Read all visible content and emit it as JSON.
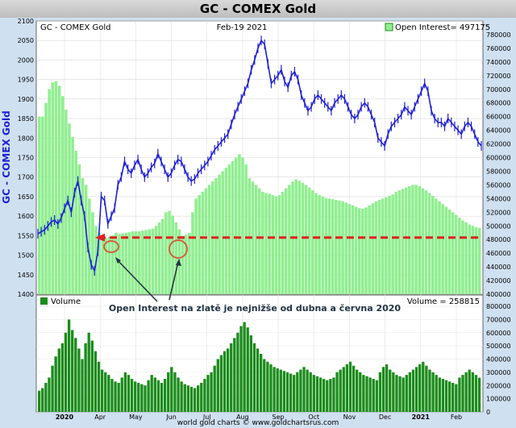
{
  "title": "GC - COMEX Gold",
  "header_left": "GC - COMEX Gold",
  "header_date": "Feb-19  2021",
  "oi_legend": "Open Interest= 497175",
  "volume_legend": "Volume",
  "volume_value": "Volume = 258815",
  "ylabel_left": "GC - COMEX Gold",
  "footer": "world gold charts © www.goldchartsrus.com",
  "annotation": "Open Interest na zlatě je nejnižše od dubna a června 2020",
  "colors": {
    "price": "#1f1fd6",
    "open_interest": "#90ee90",
    "volume": "#1a8c1a",
    "reference_line": "#e02020",
    "panel_bg": "#ffffff",
    "frame_bg": "#cfe0f0"
  },
  "chart_data": [
    {
      "type": "line",
      "name": "price",
      "title": "GC - COMEX Gold",
      "ylabel": "GC - COMEX Gold",
      "ylim": [
        1400,
        2100
      ],
      "yticks": [
        1400,
        1450,
        1500,
        1550,
        1600,
        1650,
        1700,
        1750,
        1800,
        1850,
        1900,
        1950,
        2000,
        2050,
        2100
      ],
      "x_ticks": [
        "2020",
        "Apr",
        "May",
        "Jun",
        "Jul",
        "Aug",
        "Sep",
        "Oct",
        "Nov",
        "Dec",
        "2021",
        "Feb"
      ],
      "series": [
        {
          "name": "",
          "values": [
            1555,
            1560,
            1565,
            1575,
            1585,
            1590,
            1580,
            1595,
            1620,
            1640,
            1610,
            1660,
            1690,
            1640,
            1600,
            1520,
            1475,
            1460,
            1510,
            1650,
            1640,
            1580,
            1600,
            1620,
            1680,
            1700,
            1740,
            1720,
            1710,
            1730,
            1745,
            1720,
            1700,
            1710,
            1725,
            1735,
            1760,
            1740,
            1720,
            1700,
            1710,
            1730,
            1745,
            1740,
            1720,
            1700,
            1690,
            1695,
            1710,
            1720,
            1730,
            1740,
            1755,
            1770,
            1780,
            1790,
            1800,
            1810,
            1835,
            1860,
            1880,
            1900,
            1920,
            1940,
            1975,
            2000,
            2030,
            2050,
            2040,
            1990,
            1940,
            1950,
            1960,
            1975,
            1945,
            1930,
            1960,
            1970,
            1950,
            1910,
            1890,
            1870,
            1880,
            1900,
            1910,
            1900,
            1890,
            1880,
            1870,
            1890,
            1900,
            1910,
            1900,
            1880,
            1860,
            1850,
            1860,
            1880,
            1890,
            1880,
            1860,
            1840,
            1800,
            1790,
            1780,
            1810,
            1830,
            1840,
            1850,
            1860,
            1880,
            1870,
            1860,
            1880,
            1900,
            1920,
            1940,
            1920,
            1870,
            1850,
            1840,
            1840,
            1830,
            1850,
            1840,
            1830,
            1820,
            1810,
            1830,
            1840,
            1830,
            1810,
            1790,
            1780
          ]
        }
      ]
    },
    {
      "type": "bar",
      "name": "open_interest",
      "ylabel": "Open Interest",
      "ylim": [
        400000,
        800000
      ],
      "yticks": [
        400000,
        420000,
        440000,
        460000,
        480000,
        500000,
        520000,
        540000,
        560000,
        580000,
        600000,
        620000,
        640000,
        660000,
        680000,
        700000,
        720000,
        740000,
        760000,
        780000
      ],
      "values": [
        660000,
        660000,
        680000,
        700000,
        710000,
        712000,
        705000,
        690000,
        670000,
        650000,
        630000,
        610000,
        590000,
        570000,
        560000,
        540000,
        520000,
        500000,
        490000,
        485000,
        482000,
        484000,
        486000,
        490000,
        488000,
        489000,
        490000,
        491000,
        492000,
        492000,
        492000,
        493000,
        494000,
        495000,
        496000,
        500000,
        505000,
        510000,
        520000,
        522000,
        515000,
        505000,
        495000,
        485000,
        487000,
        490000,
        520000,
        540000,
        545000,
        550000,
        555000,
        560000,
        565000,
        570000,
        575000,
        580000,
        585000,
        590000,
        595000,
        600000,
        605000,
        600000,
        590000,
        570000,
        565000,
        560000,
        555000,
        550000,
        548000,
        547000,
        545000,
        543000,
        545000,
        550000,
        555000,
        560000,
        565000,
        568000,
        566000,
        563000,
        560000,
        556000,
        552000,
        548000,
        545000,
        543000,
        541000,
        540000,
        539000,
        538000,
        537000,
        536000,
        534000,
        532000,
        530000,
        528000,
        526000,
        525000,
        527000,
        530000,
        533000,
        536000,
        538000,
        540000,
        542000,
        544000,
        546000,
        550000,
        552000,
        554000,
        556000,
        558000,
        560000,
        560000,
        558000,
        555000,
        552000,
        548000,
        544000,
        540000,
        536000,
        532000,
        528000,
        524000,
        520000,
        516000,
        512000,
        508000,
        505000,
        502000,
        500000,
        498000,
        497175
      ]
    },
    {
      "type": "bar",
      "name": "volume",
      "ylabel": "Volume",
      "ylim": [
        0,
        800000
      ],
      "yticks": [
        0,
        100000,
        200000,
        300000,
        400000,
        500000,
        600000,
        700000,
        800000
      ],
      "values": [
        160000,
        180000,
        220000,
        260000,
        350000,
        420000,
        480000,
        520000,
        600000,
        700000,
        620000,
        560000,
        480000,
        400000,
        520000,
        600000,
        540000,
        460000,
        380000,
        320000,
        300000,
        280000,
        250000,
        230000,
        220000,
        260000,
        300000,
        280000,
        250000,
        230000,
        220000,
        210000,
        200000,
        240000,
        280000,
        260000,
        240000,
        220000,
        250000,
        300000,
        340000,
        300000,
        260000,
        230000,
        210000,
        200000,
        190000,
        180000,
        200000,
        220000,
        250000,
        280000,
        300000,
        350000,
        400000,
        430000,
        460000,
        480000,
        520000,
        560000,
        600000,
        650000,
        680000,
        640000,
        580000,
        520000,
        480000,
        440000,
        400000,
        380000,
        360000,
        340000,
        330000,
        320000,
        310000,
        300000,
        290000,
        280000,
        300000,
        320000,
        340000,
        320000,
        300000,
        280000,
        270000,
        260000,
        250000,
        240000,
        250000,
        260000,
        300000,
        320000,
        340000,
        360000,
        380000,
        350000,
        320000,
        300000,
        280000,
        270000,
        260000,
        250000,
        240000,
        300000,
        340000,
        360000,
        320000,
        300000,
        280000,
        270000,
        260000,
        280000,
        300000,
        320000,
        340000,
        360000,
        380000,
        350000,
        320000,
        300000,
        280000,
        260000,
        250000,
        240000,
        230000,
        220000,
        210000,
        260000,
        280000,
        300000,
        320000,
        300000,
        280000,
        258815
      ]
    }
  ],
  "reference_line": {
    "price_level": 1545,
    "label": ""
  }
}
